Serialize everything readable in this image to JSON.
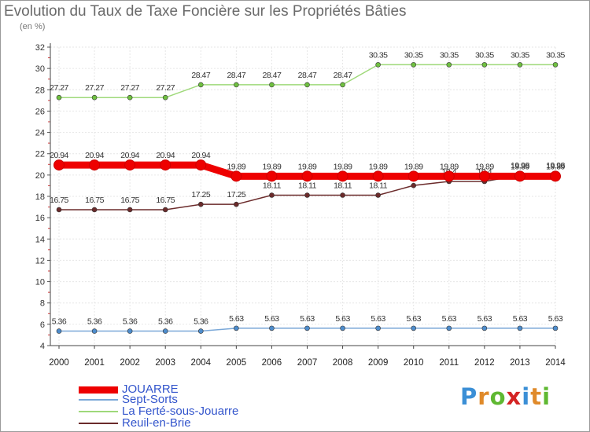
{
  "title": "Evolution du Taux de Taxe Foncière sur les Propriétés Bâties",
  "unit_label": "(en %)",
  "logo": {
    "letters": [
      "P",
      "r",
      "o",
      "x",
      "i",
      "t",
      "i"
    ],
    "colors": [
      "#3b8fd6",
      "#e08a2a",
      "#5fb832",
      "#d42424",
      "#3b8fd6",
      "#e08a2a",
      "#5fb832"
    ]
  },
  "chart_data": {
    "type": "line",
    "title": "Evolution du Taux de Taxe Foncière sur les Propriétés Bâties",
    "ylabel": "(en %)",
    "xlabel": "",
    "x": [
      "2000",
      "2001",
      "2002",
      "2003",
      "2004",
      "2005",
      "2006",
      "2007",
      "2008",
      "2009",
      "2010",
      "2011",
      "2012",
      "2013",
      "2014"
    ],
    "ylim": [
      4,
      32
    ],
    "yticks": [
      4,
      6,
      8,
      10,
      12,
      14,
      16,
      18,
      20,
      22,
      24,
      26,
      28,
      30,
      32
    ],
    "grid": true,
    "legend_position": "bottom-left",
    "series": [
      {
        "name": "La Ferté-sous-Jouarre",
        "color": "#9fd97a",
        "marker": "#6fc040",
        "width": 1.5,
        "values": [
          27.27,
          27.27,
          27.27,
          27.27,
          28.47,
          28.47,
          28.47,
          28.47,
          28.47,
          30.35,
          30.35,
          30.35,
          30.35,
          30.35,
          30.35
        ],
        "labels": [
          "27.27",
          "27.27",
          "27.27",
          "27.27",
          "28.47",
          "28.47",
          "28.47",
          "28.47",
          "28.47",
          "30.35",
          "30.35",
          "30.35",
          "30.35",
          "30.35",
          "30.35"
        ]
      },
      {
        "name": "Reuil-en-Brie",
        "color": "#6b2b2b",
        "marker": "#6b2b2b",
        "width": 1.5,
        "values": [
          16.75,
          16.75,
          16.75,
          16.75,
          17.25,
          17.25,
          18.11,
          18.11,
          18.11,
          18.11,
          19.02,
          19.4,
          19.4,
          19.98,
          19.98
        ],
        "labels": [
          "16.75",
          "16.75",
          "16.75",
          "16.75",
          "17.25",
          "17.25",
          "18.11",
          "18.11",
          "18.11",
          "18.11",
          "19.02",
          "19.4",
          "19.4",
          "19.98",
          "19.98"
        ]
      },
      {
        "name": "Sept-Sorts",
        "color": "#7aa8d8",
        "marker": "#4d8ccc",
        "width": 1.5,
        "values": [
          5.36,
          5.36,
          5.36,
          5.36,
          5.36,
          5.63,
          5.63,
          5.63,
          5.63,
          5.63,
          5.63,
          5.63,
          5.63,
          5.63,
          5.63
        ],
        "labels": [
          "5.36",
          "5.36",
          "5.36",
          "5.36",
          "5.36",
          "5.63",
          "5.63",
          "5.63",
          "5.63",
          "5.63",
          "5.63",
          "5.63",
          "5.63",
          "5.63",
          "5.63"
        ]
      },
      {
        "name": "JOUARRE",
        "color": "#ee0000",
        "marker": "#ee0000",
        "width": 9,
        "values": [
          20.94,
          20.94,
          20.94,
          20.94,
          20.94,
          19.89,
          19.89,
          19.89,
          19.89,
          19.89,
          19.89,
          19.89,
          19.89,
          19.89,
          19.89
        ],
        "labels": [
          "20.94",
          "20.94",
          "20.94",
          "20.94",
          "20.94",
          "19.89",
          "19.89",
          "19.89",
          "19.89",
          "19.89",
          "19.89",
          "19.89",
          "19.89",
          "19.89",
          "19.89"
        ]
      }
    ],
    "legend": [
      {
        "name": "JOUARRE",
        "color": "#ee0000"
      },
      {
        "name": "Sept-Sorts",
        "color": "#7aa8d8"
      },
      {
        "name": "La Ferté-sous-Jouarre",
        "color": "#9fd97a"
      },
      {
        "name": "Reuil-en-Brie",
        "color": "#6b2b2b"
      }
    ]
  }
}
